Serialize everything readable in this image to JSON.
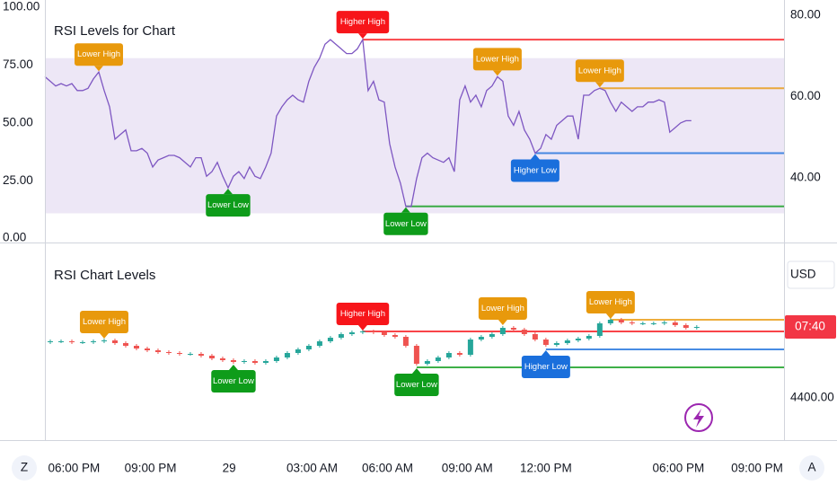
{
  "ui": {
    "currency": "USD",
    "left_button": "Z",
    "right_button": "A"
  },
  "chart_data": [
    {
      "type": "line",
      "title": "RSI Levels for Chart",
      "color": "#7e57c2",
      "band": [
        78,
        11
      ],
      "band_color": "#ede7f6",
      "xlim": [
        0,
        137.2
      ],
      "ylim": [
        -1.6,
        103.1
      ],
      "yticks": [
        {
          "value": 100,
          "label": "100.00"
        },
        {
          "value": 75,
          "label": "75.00"
        },
        {
          "value": 50,
          "label": "50.00"
        },
        {
          "value": 25,
          "label": "25.00"
        },
        {
          "value": 0,
          "label": "0.00"
        }
      ],
      "y2lim": [
        24,
        83.8
      ],
      "y2ticks": [
        {
          "value": 80,
          "label": "80.00"
        },
        {
          "value": 60,
          "label": "60.00"
        },
        {
          "value": 40,
          "label": "40.00"
        }
      ],
      "values": [
        70,
        68,
        66,
        67,
        66,
        67,
        64,
        64,
        65,
        69,
        72,
        64,
        57,
        43,
        45,
        47,
        38,
        38,
        39,
        37,
        31,
        34,
        35,
        36,
        36,
        35,
        33,
        31,
        35,
        35,
        27,
        29,
        33,
        27,
        22,
        27,
        29,
        26,
        31,
        27,
        26,
        31,
        37,
        53,
        57,
        60,
        62,
        60,
        59,
        68,
        74,
        78,
        84,
        86,
        84,
        82,
        80,
        80,
        82,
        86,
        64,
        68,
        60,
        59,
        41,
        31,
        24,
        14,
        14,
        26,
        35,
        37,
        35,
        34,
        33,
        35,
        29,
        60,
        66,
        59,
        62,
        57,
        64,
        66,
        70,
        68,
        53,
        49,
        55,
        47,
        43,
        37,
        39,
        45,
        43,
        49,
        51,
        53,
        53,
        43,
        62,
        62,
        64,
        65,
        64,
        59,
        55,
        59,
        57,
        55,
        57,
        57,
        59,
        59,
        60,
        59,
        46,
        48,
        50,
        51,
        51
      ],
      "annotations": [
        {
          "text": "Lower High",
          "index": 10,
          "value": 72,
          "position": "above",
          "color": "#e8990c",
          "level": false
        },
        {
          "text": "Lower Low",
          "index": 34,
          "value": 22,
          "position": "below",
          "color": "#0e9c1a",
          "level": false
        },
        {
          "text": "Higher High",
          "index": 59,
          "value": 86,
          "position": "above",
          "color": "#f7151a",
          "level": true
        },
        {
          "text": "Lower Low",
          "index": 67,
          "value": 14,
          "position": "below",
          "color": "#0e9c1a",
          "level": true
        },
        {
          "text": "Lower High",
          "index": 84,
          "value": 70,
          "position": "above",
          "color": "#e8990c",
          "level": false
        },
        {
          "text": "Higher Low",
          "index": 91,
          "value": 37,
          "position": "below",
          "color": "#1a6fdc",
          "level": true
        },
        {
          "text": "Lower High",
          "index": 103,
          "value": 65,
          "position": "above",
          "color": "#e8990c",
          "level": true
        }
      ]
    },
    {
      "type": "candlestick",
      "title": "RSI Chart Levels",
      "up_color": "#26a69a",
      "down_color": "#ef5350",
      "xlim": [
        -0.5,
        68.1
      ],
      "ylim": [
        4376.5,
        4485.5
      ],
      "yticks": [
        {
          "value": 4400,
          "label": "4400.00"
        }
      ],
      "xticks": [
        {
          "value": 2.2,
          "label": "06:00 PM"
        },
        {
          "value": 9.3,
          "label": "09:00 PM"
        },
        {
          "value": 16.6,
          "label": "29"
        },
        {
          "value": 24.3,
          "label": "03:00 AM"
        },
        {
          "value": 31.3,
          "label": "06:00 AM"
        },
        {
          "value": 38.7,
          "label": "09:00 AM"
        },
        {
          "value": 46,
          "label": "12:00 PM"
        },
        {
          "value": 58.3,
          "label": "06:00 PM"
        },
        {
          "value": 65.6,
          "label": "09:00 PM"
        }
      ],
      "price_label": "07:40",
      "open": [
        4431,
        4431.5,
        4431.5,
        4431,
        4431,
        4431.5,
        4432,
        4430.5,
        4429,
        4427.5,
        4426.5,
        4425.5,
        4425,
        4424.5,
        4424.5,
        4423.5,
        4422,
        4421,
        4420,
        4420.5,
        4419.5,
        4420.5,
        4422.5,
        4425,
        4427,
        4429,
        4431.5,
        4433.5,
        4435.5,
        4436.5,
        4437,
        4436.5,
        4435,
        4434,
        4429,
        4419,
        4420.5,
        4422.5,
        4425,
        4424,
        4432.5,
        4434,
        4435.5,
        4439,
        4438,
        4435.5,
        4432.5,
        4429.5,
        4430.5,
        4432,
        4433,
        4434.5,
        4441.5,
        4443.5,
        4442,
        4441.5,
        4441.5,
        4441.5,
        4442,
        4440.5,
        4439
      ],
      "close": [
        4431.5,
        4431.5,
        4431,
        4431,
        4431.5,
        4432,
        4430.5,
        4429,
        4427.5,
        4426.5,
        4425.5,
        4425,
        4424.5,
        4424.5,
        4423.5,
        4422,
        4421,
        4420,
        4420.5,
        4419.5,
        4420.5,
        4422.5,
        4425,
        4427,
        4429,
        4431.5,
        4433.5,
        4435.5,
        4436.5,
        4437,
        4436.5,
        4435,
        4434,
        4429,
        4419,
        4420.5,
        4422.5,
        4425,
        4424,
        4432.5,
        4434,
        4435.5,
        4439,
        4438,
        4435.5,
        4432.5,
        4429.5,
        4430.5,
        4432,
        4433,
        4434.5,
        4441.5,
        4443.5,
        4442,
        4441.5,
        4441.5,
        4441.5,
        4442,
        4440.5,
        4439,
        4439.5
      ],
      "high": [
        4432.5,
        4432.5,
        4432.5,
        4432,
        4432.5,
        4433,
        4433,
        4431.5,
        4430,
        4428.5,
        4427.5,
        4426.5,
        4426,
        4425.5,
        4425.5,
        4424.5,
        4423,
        4422,
        4421.5,
        4421.5,
        4421.5,
        4423.5,
        4426,
        4428,
        4430,
        4432.5,
        4434.5,
        4436.5,
        4437.5,
        4438,
        4438,
        4437.5,
        4436,
        4435,
        4430,
        4421.5,
        4423.5,
        4426,
        4426,
        4433.5,
        4435,
        4436.5,
        4440,
        4440,
        4439,
        4436.5,
        4433.5,
        4431.5,
        4433,
        4434,
        4435.5,
        4442.5,
        4444.5,
        4444.5,
        4443,
        4442.5,
        4442.5,
        4443,
        4443,
        4441.5,
        4440.5
      ],
      "low": [
        4430,
        4430.5,
        4430,
        4430,
        4430,
        4430.5,
        4429.5,
        4428,
        4426.5,
        4425.5,
        4424.5,
        4424,
        4423.5,
        4423.5,
        4422.5,
        4421,
        4420,
        4419,
        4419,
        4418.5,
        4418.5,
        4419.5,
        4421.5,
        4424,
        4426,
        4428,
        4430.5,
        4432.5,
        4434.5,
        4435.5,
        4435.5,
        4434,
        4433,
        4428,
        4418,
        4418,
        4419.5,
        4421.5,
        4423,
        4423,
        4431.5,
        4433,
        4434.5,
        4437,
        4434.5,
        4431.5,
        4428.5,
        4428.5,
        4429.5,
        4431,
        4432,
        4433.5,
        4440.5,
        4441,
        4440.5,
        4440.5,
        4440.5,
        4440.5,
        4439.5,
        4438,
        4438
      ],
      "annotations": [
        {
          "text": "Lower High",
          "index": 5,
          "value": 4432.5,
          "position": "above",
          "color": "#e8990c",
          "level": false
        },
        {
          "text": "Lower Low",
          "index": 17,
          "value": 4419,
          "position": "below",
          "color": "#0e9c1a",
          "level": false
        },
        {
          "text": "Higher High",
          "index": 29,
          "value": 4437,
          "position": "above",
          "color": "#f7151a",
          "level": true
        },
        {
          "text": "Lower Low",
          "index": 34,
          "value": 4417,
          "position": "below",
          "color": "#0e9c1a",
          "level": true
        },
        {
          "text": "Lower High",
          "index": 42,
          "value": 4440,
          "position": "above",
          "color": "#e8990c",
          "level": false
        },
        {
          "text": "Higher Low",
          "index": 46,
          "value": 4427,
          "position": "below",
          "color": "#1a6fdc",
          "level": true
        },
        {
          "text": "Lower High",
          "index": 52,
          "value": 4443.5,
          "position": "above",
          "color": "#e8990c",
          "level": true
        }
      ]
    }
  ]
}
